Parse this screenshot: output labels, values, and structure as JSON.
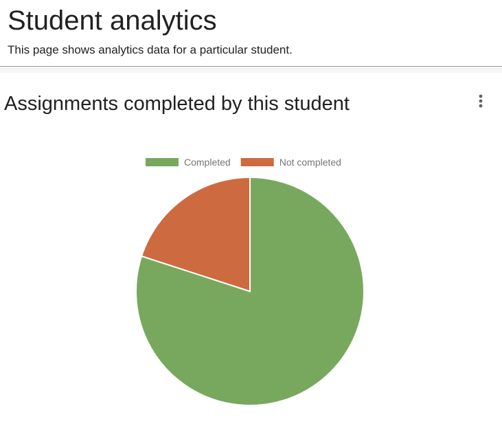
{
  "page": {
    "title": "Student analytics",
    "subtitle": "This page shows analytics data for a particular student."
  },
  "card": {
    "title": "Assignments completed by this student",
    "menu_icon": "more-vert-icon"
  },
  "chart_data": {
    "type": "pie",
    "title": "",
    "legend_position": "top",
    "slices": [
      {
        "label": "Completed",
        "value": 80,
        "color": "#78a85e"
      },
      {
        "label": "Not completed",
        "value": 20,
        "color": "#cd6a40"
      }
    ]
  }
}
